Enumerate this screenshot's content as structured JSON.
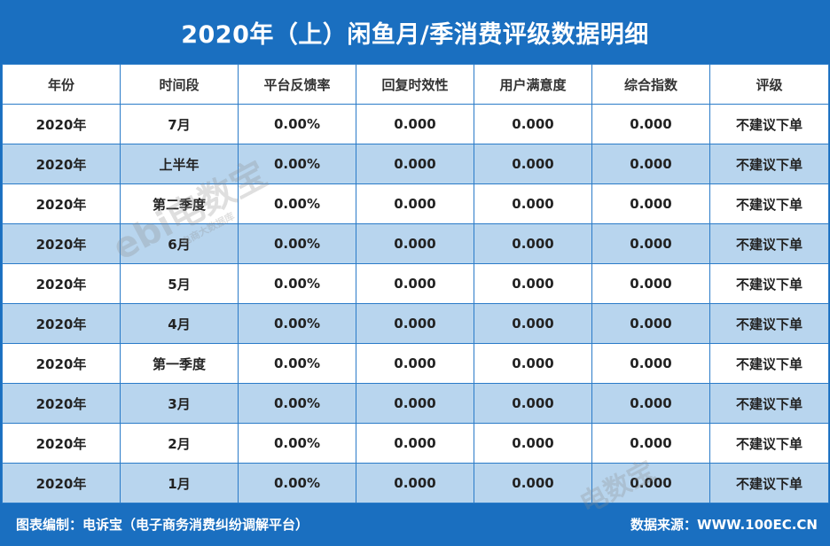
{
  "title": "2020年（上）闲鱼月/季消费评级数据明细",
  "columns": [
    "年份",
    "时间段",
    "平台反馈率",
    "回复时效性",
    "用户满意度",
    "综合指数",
    "评级"
  ],
  "rows": [
    [
      "2020年",
      "7月",
      "0.00%",
      "0.000",
      "0.000",
      "0.000",
      "不建议下单"
    ],
    [
      "2020年",
      "上半年",
      "0.00%",
      "0.000",
      "0.000",
      "0.000",
      "不建议下单"
    ],
    [
      "2020年",
      "第二季度",
      "0.00%",
      "0.000",
      "0.000",
      "0.000",
      "不建议下单"
    ],
    [
      "2020年",
      "6月",
      "0.00%",
      "0.000",
      "0.000",
      "0.000",
      "不建议下单"
    ],
    [
      "2020年",
      "5月",
      "0.00%",
      "0.000",
      "0.000",
      "0.000",
      "不建议下单"
    ],
    [
      "2020年",
      "4月",
      "0.00%",
      "0.000",
      "0.000",
      "0.000",
      "不建议下单"
    ],
    [
      "2020年",
      "第一季度",
      "0.00%",
      "0.000",
      "0.000",
      "0.000",
      "不建议下单"
    ],
    [
      "2020年",
      "3月",
      "0.00%",
      "0.000",
      "0.000",
      "0.000",
      "不建议下单"
    ],
    [
      "2020年",
      "2月",
      "0.00%",
      "0.000",
      "0.000",
      "0.000",
      "不建议下单"
    ],
    [
      "2020年",
      "1月",
      "0.00%",
      "0.000",
      "0.000",
      "0.000",
      "不建议下单"
    ]
  ],
  "footer": {
    "left": "图表编制：电诉宝（电子商务消费纠纷调解平台）",
    "right": "数据来源：WWW.100EC.CN"
  },
  "watermark": {
    "logo": "ebi",
    "brand": "电数宝",
    "tagline": "电商大数据库"
  },
  "colors": {
    "brand_blue": "#1a6fc0",
    "alt_row": "#b8d5ee",
    "border": "#2a7bc8"
  }
}
